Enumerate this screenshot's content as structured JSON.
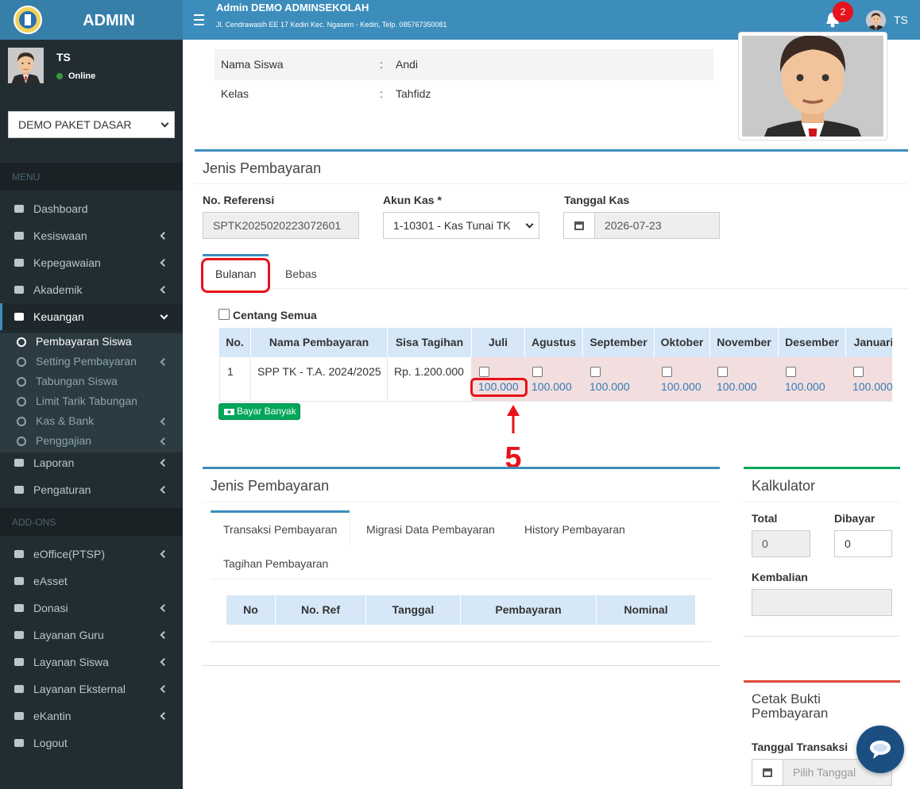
{
  "header": {
    "brand": "ADMIN",
    "title": "Admin DEMO ADMINSEKOLAH",
    "address": "Jl. Cendrawasih EE 17 Kediri Kec. Ngasem - Kediri, Telp. 085767350081",
    "notif_count": "2",
    "user": "TS"
  },
  "sidebar": {
    "user": "TS",
    "status": "Online",
    "package": "DEMO PAKET DASAR",
    "menu_header": "MENU",
    "menu": [
      "Dashboard",
      "Kesiswaan",
      "Kepegawaian",
      "Akademik",
      "Keuangan"
    ],
    "submenu": [
      "Pembayaran Siswa",
      "Setting Pembayaran",
      "Tabungan Siswa",
      "Limit Tarik Tabungan",
      "Kas & Bank",
      "Penggajian"
    ],
    "menu_more": [
      "Laporan",
      "Pengaturan"
    ],
    "addons_header": "ADD-ONS",
    "addons": [
      "eOffice(PTSP)",
      "eAsset",
      "Donasi",
      "Layanan Guru",
      "Layanan Siswa",
      "Layanan Eksternal",
      "eKantin",
      "Logout"
    ]
  },
  "student": {
    "rows": [
      [
        "Nama Siswa",
        ":",
        "Andi"
      ],
      [
        "Kelas",
        ":",
        "Tahfidz"
      ]
    ]
  },
  "payment": {
    "title": "Jenis Pembayaran",
    "ref_label": "No. Referensi",
    "ref_value": "SPTK2025020223072601",
    "akun_label": "Akun Kas *",
    "akun_value": "1-10301 - Kas Tunai TK",
    "tanggal_label": "Tanggal Kas",
    "tanggal_value": "2026-07-23",
    "tabs": [
      "Bulanan",
      "Bebas"
    ],
    "check_all": "Centang Semua",
    "table": {
      "headers": [
        "No.",
        "Nama Pembayaran",
        "Sisa Tagihan",
        "Juli",
        "Agustus",
        "September",
        "Oktober",
        "November",
        "Desember",
        "Januari"
      ],
      "row": [
        "1",
        "SPP TK - T.A. 2024/2025",
        "Rp. 1.200.000"
      ],
      "month_values": [
        "100.000",
        "100.000",
        "100.000",
        "100.000",
        "100.000",
        "100.000",
        "100.000"
      ]
    },
    "button": "Bayar Banyak",
    "annotation": "5"
  },
  "history": {
    "title": "Jenis Pembayaran",
    "tabs": [
      "Transaksi Pembayaran",
      "Migrasi Data Pembayaran",
      "History Pembayaran",
      "Tagihan Pembayaran"
    ],
    "table_headers": [
      "No",
      "No. Ref",
      "Tanggal",
      "Pembayaran",
      "Nominal"
    ]
  },
  "calculator": {
    "title": "Kalkulator",
    "total_label": "Total",
    "total_value": "0",
    "paid_label": "Dibayar",
    "paid_value": "0",
    "change_label": "Kembalian"
  },
  "print": {
    "title": "Cetak Bukti Pembayaran",
    "date_label": "Tanggal Transaksi",
    "date_placeholder": "Pilih Tanggal"
  }
}
